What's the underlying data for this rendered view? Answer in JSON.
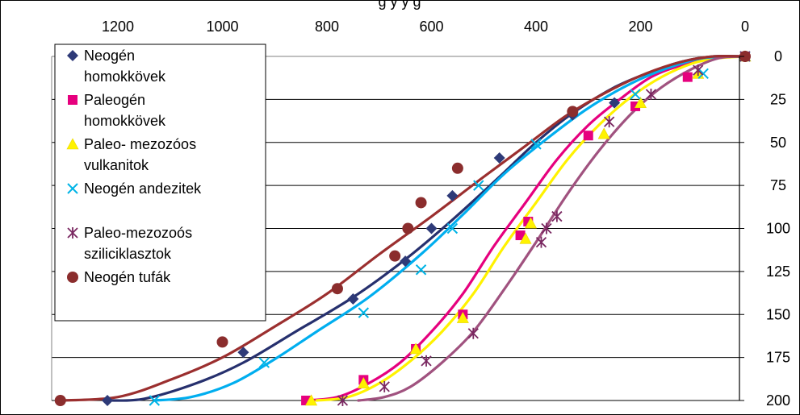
{
  "chart_data": {
    "type": "scatter",
    "title_fragment": "g   y   y  g",
    "x_axis": {
      "position": "top",
      "reversed": true,
      "range": [
        0,
        1310
      ],
      "ticks": [
        1200,
        1000,
        800,
        600,
        400,
        200,
        0
      ]
    },
    "y_axis": {
      "position": "right",
      "reversed": true,
      "range": [
        0,
        200
      ],
      "ticks": [
        0,
        25,
        50,
        75,
        100,
        125,
        150,
        175,
        200
      ]
    },
    "grid": "horizontal",
    "legend_placement": "top-left",
    "series": [
      {
        "name": "Neogén homokkövek",
        "marker": "diamond",
        "color": "#2E3A78",
        "points": [
          [
            1220,
            200
          ],
          [
            960,
            172
          ],
          [
            750,
            141
          ],
          [
            650,
            119
          ],
          [
            600,
            100
          ],
          [
            560,
            81
          ],
          [
            470,
            59
          ],
          [
            330,
            34
          ],
          [
            250,
            27
          ],
          [
            0,
            0
          ]
        ],
        "fit": [
          [
            1220,
            200
          ],
          [
            1150,
            199
          ],
          [
            1050,
            190
          ],
          [
            960,
            178
          ],
          [
            860,
            160
          ],
          [
            750,
            140
          ],
          [
            650,
            118
          ],
          [
            560,
            95
          ],
          [
            470,
            70
          ],
          [
            400,
            50
          ],
          [
            330,
            33
          ],
          [
            250,
            18
          ],
          [
            180,
            9
          ],
          [
            120,
            3
          ],
          [
            60,
            0
          ],
          [
            0,
            0
          ]
        ]
      },
      {
        "name": "Paleogén homokkövek",
        "marker": "square",
        "color": "#E6007E",
        "points": [
          [
            840,
            200
          ],
          [
            730,
            188
          ],
          [
            630,
            170
          ],
          [
            540,
            150
          ],
          [
            430,
            104
          ],
          [
            415,
            96
          ],
          [
            300,
            46
          ],
          [
            210,
            29
          ],
          [
            110,
            12
          ],
          [
            0,
            0
          ]
        ],
        "fit": [
          [
            840,
            200
          ],
          [
            780,
            198
          ],
          [
            720,
            190
          ],
          [
            660,
            178
          ],
          [
            600,
            160
          ],
          [
            540,
            138
          ],
          [
            480,
            110
          ],
          [
            420,
            85
          ],
          [
            360,
            60
          ],
          [
            300,
            40
          ],
          [
            240,
            25
          ],
          [
            180,
            12
          ],
          [
            120,
            5
          ],
          [
            60,
            1
          ],
          [
            0,
            0
          ]
        ]
      },
      {
        "name": "Paleo- mezozóos vulkanitok",
        "marker": "triangle",
        "color": "#FFF200",
        "points": [
          [
            830,
            200
          ],
          [
            730,
            190
          ],
          [
            630,
            170
          ],
          [
            540,
            152
          ],
          [
            420,
            106
          ],
          [
            410,
            97
          ],
          [
            270,
            45
          ],
          [
            200,
            27
          ],
          [
            90,
            10
          ],
          [
            0,
            0
          ]
        ],
        "fit": [
          [
            820,
            200
          ],
          [
            760,
            198
          ],
          [
            700,
            190
          ],
          [
            640,
            177
          ],
          [
            580,
            160
          ],
          [
            520,
            138
          ],
          [
            460,
            110
          ],
          [
            400,
            85
          ],
          [
            340,
            60
          ],
          [
            280,
            40
          ],
          [
            220,
            24
          ],
          [
            160,
            12
          ],
          [
            100,
            4
          ],
          [
            50,
            1
          ],
          [
            0,
            0
          ]
        ]
      },
      {
        "name": "Neogén andezitek",
        "marker": "x",
        "color": "#00B4E6",
        "points": [
          [
            1130,
            200
          ],
          [
            920,
            178
          ],
          [
            730,
            149
          ],
          [
            620,
            124
          ],
          [
            560,
            100
          ],
          [
            510,
            75
          ],
          [
            400,
            51
          ],
          [
            210,
            22
          ],
          [
            80,
            10
          ],
          [
            0,
            0
          ]
        ],
        "fit": [
          [
            1130,
            200
          ],
          [
            1060,
            198
          ],
          [
            980,
            190
          ],
          [
            900,
            176
          ],
          [
            820,
            160
          ],
          [
            720,
            140
          ],
          [
            620,
            115
          ],
          [
            540,
            92
          ],
          [
            460,
            68
          ],
          [
            380,
            48
          ],
          [
            300,
            30
          ],
          [
            220,
            16
          ],
          [
            150,
            7
          ],
          [
            80,
            1
          ],
          [
            0,
            0
          ]
        ]
      },
      {
        "name": "Paleo-mezozoós sziliciklasztok",
        "marker": "asterisk",
        "color": "#7A2861",
        "points": [
          [
            770,
            200
          ],
          [
            690,
            192
          ],
          [
            610,
            177
          ],
          [
            520,
            161
          ],
          [
            390,
            108
          ],
          [
            380,
            100
          ],
          [
            360,
            93
          ],
          [
            260,
            38
          ],
          [
            180,
            22
          ],
          [
            90,
            8
          ],
          [
            0,
            0
          ]
        ],
        "fit": [
          [
            740,
            200
          ],
          [
            690,
            198
          ],
          [
            640,
            192
          ],
          [
            580,
            178
          ],
          [
            520,
            160
          ],
          [
            460,
            135
          ],
          [
            400,
            108
          ],
          [
            340,
            80
          ],
          [
            280,
            55
          ],
          [
            220,
            34
          ],
          [
            160,
            18
          ],
          [
            100,
            7
          ],
          [
            50,
            1
          ],
          [
            0,
            0
          ]
        ]
      },
      {
        "name": "Neogén tufák",
        "marker": "circle",
        "color": "#8B2D2D",
        "points": [
          [
            1310,
            200
          ],
          [
            1000,
            166
          ],
          [
            780,
            135
          ],
          [
            670,
            116
          ],
          [
            645,
            100
          ],
          [
            620,
            85
          ],
          [
            550,
            65
          ],
          [
            330,
            32
          ],
          [
            0,
            0
          ]
        ],
        "fit": [
          [
            1310,
            200
          ],
          [
            1200,
            198
          ],
          [
            1100,
            188
          ],
          [
            1000,
            175
          ],
          [
            900,
            157
          ],
          [
            800,
            138
          ],
          [
            700,
            115
          ],
          [
            600,
            93
          ],
          [
            500,
            70
          ],
          [
            420,
            52
          ],
          [
            340,
            34
          ],
          [
            260,
            20
          ],
          [
            190,
            10
          ],
          [
            120,
            3
          ],
          [
            60,
            0
          ],
          [
            0,
            0
          ]
        ]
      }
    ]
  },
  "legend": {
    "items": [
      {
        "lines": [
          "Neogén",
          "homokkövek"
        ]
      },
      {
        "lines": [
          "Paleogén",
          "homokkövek"
        ]
      },
      {
        "lines": [
          "Paleo- mezozóos",
          "vulkanitok"
        ]
      },
      {
        "lines": [
          "Neogén andezitek"
        ]
      },
      {
        "lines": [
          "Paleo-mezozoós",
          "sziliciklasztok"
        ]
      },
      {
        "lines": [
          "Neogén tufák"
        ]
      }
    ]
  },
  "colors": {
    "axis": "#000000",
    "grid": "#000000",
    "plot_border": "#808080",
    "background": "#ffffff"
  }
}
